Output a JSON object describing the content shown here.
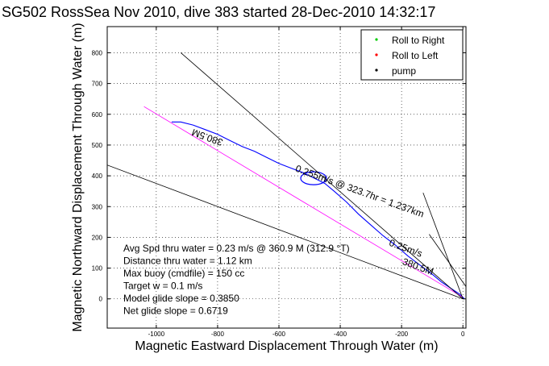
{
  "chart_data": {
    "type": "line",
    "title": "SG502 RossSea Nov 2010, dive 383 started 28-Dec-2010 14:32:17",
    "xlabel": "Magnetic Eastward Displacement Through Water (m)",
    "ylabel": "Magnetic Northward Displacement Through Water (m)",
    "xlim": [
      -1160,
      10
    ],
    "ylim": [
      -95,
      885
    ],
    "grid": true,
    "x_ticks": [
      -1000,
      -800,
      -600,
      -400,
      -200,
      0
    ],
    "y_ticks": [
      0,
      100,
      200,
      300,
      400,
      500,
      600,
      700,
      800
    ],
    "legend": {
      "placement": "top-right",
      "entries": [
        {
          "label": "Roll to Right",
          "color": "#00cc00",
          "marker": "."
        },
        {
          "label": "Roll to Left",
          "color": "#ff0000",
          "marker": "."
        },
        {
          "label": "pump",
          "color": "#000000",
          "marker": "."
        }
      ]
    },
    "series": [
      {
        "kind": "track",
        "color": "#0000ff",
        "points": [
          [
            5,
            0
          ],
          [
            -10,
            15
          ],
          [
            -40,
            35
          ],
          [
            -70,
            55
          ],
          [
            -100,
            80
          ],
          [
            -140,
            110
          ],
          [
            -180,
            140
          ],
          [
            -220,
            175
          ],
          [
            -260,
            205
          ],
          [
            -300,
            240
          ],
          [
            -340,
            275
          ],
          [
            -380,
            315
          ],
          [
            -420,
            350
          ],
          [
            -450,
            375
          ],
          [
            -470,
            385
          ],
          [
            -500,
            400
          ],
          [
            -520,
            410
          ],
          [
            -560,
            425
          ],
          [
            -600,
            440
          ],
          [
            -640,
            460
          ],
          [
            -680,
            480
          ],
          [
            -720,
            495
          ],
          [
            -760,
            515
          ],
          [
            -800,
            535
          ],
          [
            -840,
            550
          ],
          [
            -880,
            565
          ],
          [
            -920,
            575
          ],
          [
            -950,
            575
          ]
        ]
      },
      {
        "kind": "loop",
        "color": "#0000ff",
        "center": [
          -487,
          392
        ],
        "radius": [
          42,
          21
        ]
      },
      {
        "kind": "model-glide-line",
        "color": "#ff00ff",
        "points": [
          [
            0,
            5
          ],
          [
            -1040,
            625
          ]
        ]
      },
      {
        "kind": "current-line",
        "color": "#000000",
        "points": [
          [
            0,
            0
          ],
          [
            -920,
            800
          ]
        ]
      },
      {
        "kind": "current-line",
        "color": "#000000",
        "points": [
          [
            0,
            0
          ],
          [
            -1160,
            435
          ]
        ]
      },
      {
        "kind": "current-line",
        "color": "#000000",
        "points": [
          [
            0,
            0
          ],
          [
            -130,
            345
          ]
        ]
      },
      {
        "kind": "current-line",
        "color": "#000000",
        "points": [
          [
            10,
            40
          ],
          [
            -110,
            210
          ]
        ]
      }
    ],
    "annotations": [
      {
        "text": "380.5M",
        "at": [
          -830,
          535
        ],
        "rotate": 200
      },
      {
        "text": "0.255m/s @ 323.7hr = 1.237km",
        "at": [
          -340,
          340
        ],
        "rotate": 20
      },
      {
        "text": "0.25m/s",
        "at": [
          -190,
          155
        ],
        "rotate": 20
      },
      {
        "text": "380.5M",
        "at": [
          -150,
          95
        ],
        "rotate": 20
      }
    ],
    "stats_text": [
      "Avg Spd thru water =  0.23 m/s @ 360.9  M (312.9 °T)",
      "Distance thru water =  1.12 km",
      "Max buoy (cmdfile) = 150 cc",
      "Target w = 0.1 m/s",
      "Model glide slope = 0.3850",
      "Net glide slope = 0.6719"
    ]
  }
}
